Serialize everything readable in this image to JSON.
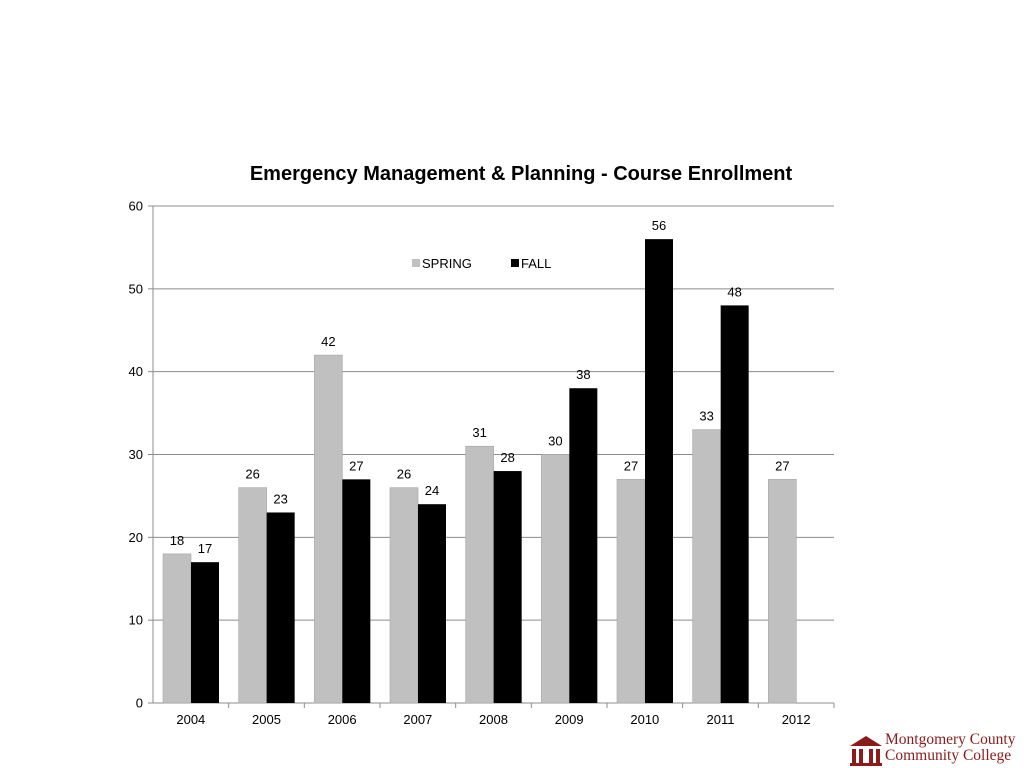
{
  "chart_data": {
    "type": "bar",
    "title": "Emergency Management & Planning - Course Enrollment",
    "categories": [
      "2004",
      "2005",
      "2006",
      "2007",
      "2008",
      "2009",
      "2010",
      "2011",
      "2012"
    ],
    "series": [
      {
        "name": "SPRING",
        "color": "#c0c0c0",
        "values": [
          18,
          26,
          42,
          26,
          31,
          30,
          27,
          33,
          27
        ]
      },
      {
        "name": "FALL",
        "color": "#000000",
        "values": [
          17,
          23,
          27,
          24,
          28,
          38,
          56,
          48,
          null
        ]
      }
    ],
    "ylim": [
      0,
      60
    ],
    "yticks": [
      0,
      10,
      20,
      30,
      40,
      50,
      60
    ],
    "grid": true,
    "legend_position": "top-center"
  },
  "logo": {
    "line1": "Montgomery County",
    "line2": "Community College",
    "color": "#8a1c1c"
  }
}
